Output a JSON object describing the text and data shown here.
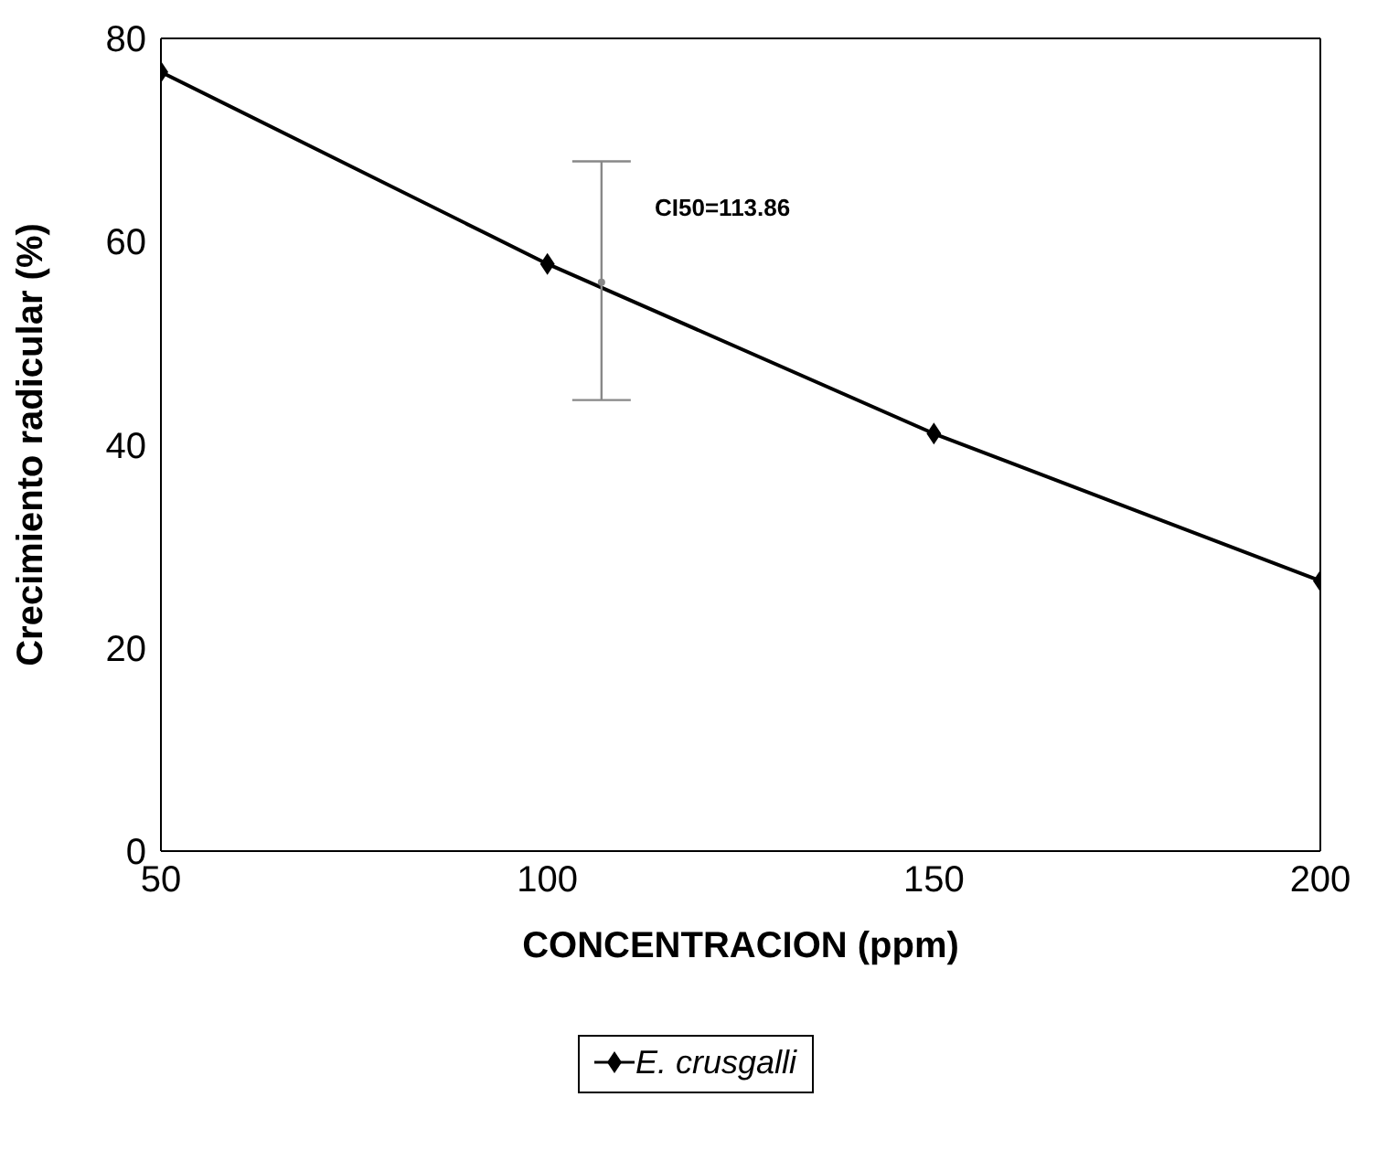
{
  "chart_data": {
    "type": "line",
    "xlabel": "CONCENTRACION (ppm)",
    "ylabel": "Crecimiento radicular (%)",
    "x": [
      50,
      100,
      150,
      200
    ],
    "series": [
      {
        "name": "E. crusgalli",
        "color": "#000000",
        "values": [
          76.7,
          57.8,
          41.1,
          26.6
        ],
        "marker": "diamond"
      },
      {
        "type": "scatter",
        "color": "#888888",
        "x": [
          107
        ],
        "values": [
          56
        ],
        "errors": [
          [
            44.4,
            67.9
          ]
        ],
        "marker": "circle"
      }
    ],
    "annotations": [
      "CI50=113.86"
    ],
    "xlim": [
      50,
      200
    ],
    "xticks": [
      50,
      100,
      150,
      200
    ],
    "ylim": [
      0,
      80
    ],
    "yticks": [
      0,
      20,
      40,
      60,
      80
    ],
    "legend": "bottom"
  }
}
